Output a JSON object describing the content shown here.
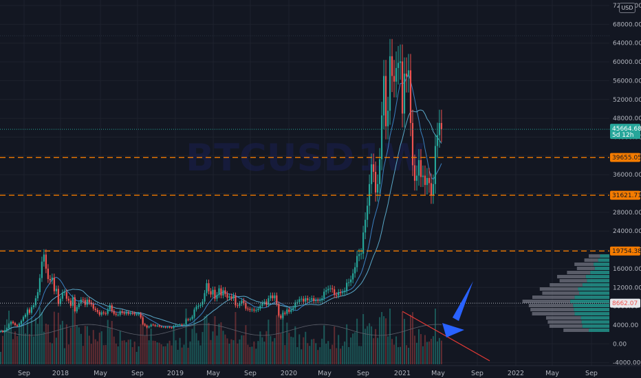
{
  "chart_data": {
    "type": "candlestick",
    "currency_label": "USD",
    "y_ticks": [
      "72000.00",
      "68000.00",
      "64000.00",
      "60000.00",
      "56000.00",
      "52000.00",
      "48000.00",
      "44000.00",
      "40000.00",
      "36000.00",
      "32000.00",
      "28000.00",
      "24000.00",
      "20000.00",
      "16000.00",
      "12000.00",
      "8000.00",
      "4000.00",
      "0.00",
      "-4000.00"
    ],
    "x_ticks": [
      "Sep",
      "2018",
      "May",
      "Sep",
      "2019",
      "May",
      "Sep",
      "2020",
      "May",
      "Sep",
      "2021",
      "May",
      "Sep",
      "2022",
      "May",
      "Sep"
    ],
    "ylim": [
      -5000,
      73000
    ],
    "price_lines": [
      {
        "value": 39655.05,
        "label": "39655.05",
        "color": "#f57c00",
        "style": "dashed"
      },
      {
        "value": 31621.71,
        "label": "31621.71",
        "color": "#f57c00",
        "style": "dashed"
      },
      {
        "value": 19754.38,
        "label": "19754.38",
        "color": "#f57c00",
        "style": "dashed"
      },
      {
        "value": 8662.07,
        "label": "8662.07",
        "color": "#b2b5be",
        "style": "dotted"
      }
    ],
    "current_price": {
      "value": 45664.68,
      "label": "45664.68",
      "countdown": "5d 12h",
      "color": "#26a69a"
    },
    "colors": {
      "up": "#26a69a",
      "down": "#ef5350",
      "ma": "#5aa9c9",
      "trend": "#e53935",
      "arrow": "#2962ff",
      "orange": "#f57c00"
    },
    "watermark": [
      "BTCUSD",
      "1W"
    ],
    "candles": {
      "start": "Jul 2017",
      "interval": "1W",
      "close": [
        2700,
        2500,
        2800,
        3300,
        4200,
        4700,
        4400,
        4000,
        3800,
        4300,
        4900,
        5700,
        6200,
        7300,
        6600,
        7800,
        8200,
        9700,
        11000,
        14000,
        17500,
        19000,
        16000,
        13800,
        13500,
        14100,
        11200,
        11700,
        8500,
        9600,
        10900,
        11000,
        9600,
        9200,
        8100,
        9900,
        6900,
        7800,
        8600,
        9400,
        9300,
        8300,
        9400,
        8800,
        8400,
        7500,
        7200,
        6800,
        6200,
        6700,
        6500,
        6400,
        7300,
        8200,
        7000,
        6400,
        6200,
        6200,
        6900,
        6600,
        6400,
        6700,
        6400,
        6600,
        6500,
        6300,
        6300,
        6400,
        5600,
        4200,
        3900,
        3500,
        3700,
        4100,
        4000,
        3800,
        3900,
        3700,
        3600,
        3600,
        3500,
        3600,
        3500,
        3400,
        3800,
        3900,
        3900,
        4100,
        4000,
        4100,
        5200,
        5100,
        5300,
        5800,
        7300,
        7900,
        8100,
        8300,
        9000,
        10800,
        12900,
        11200,
        10500,
        11500,
        9600,
        10400,
        11800,
        10300,
        11400,
        10600,
        9800,
        10100,
        9700,
        10300,
        8200,
        8100,
        8600,
        9200,
        8700,
        7500,
        7400,
        7200,
        7300,
        7100,
        7200,
        7500,
        8100,
        8700,
        9000,
        8300,
        9700,
        10300,
        9700,
        10300,
        8500,
        6000,
        5500,
        6600,
        6400,
        7300,
        6800,
        7300,
        7700,
        8800,
        8900,
        9500,
        9600,
        9000,
        9700,
        9300,
        9400,
        9700,
        9100,
        9300,
        9200,
        9300,
        9700,
        11100,
        11400,
        11700,
        11800,
        11600,
        10400,
        10300,
        11000,
        10800,
        11000,
        11300,
        13000,
        13100,
        13700,
        15000,
        16300,
        18700,
        19100,
        19200,
        23700,
        26400,
        29400,
        34000,
        38200,
        36600,
        32200,
        34000,
        39300,
        48600,
        57000,
        46300,
        49600,
        61200,
        57000,
        55800,
        58700,
        59800,
        60100,
        49000,
        57500,
        56900,
        58200,
        47000,
        38000,
        34700,
        35800,
        39100,
        35500,
        35800,
        33800,
        35300,
        34200,
        31700,
        34000,
        42100,
        44400,
        47000,
        45664
      ]
    }
  }
}
